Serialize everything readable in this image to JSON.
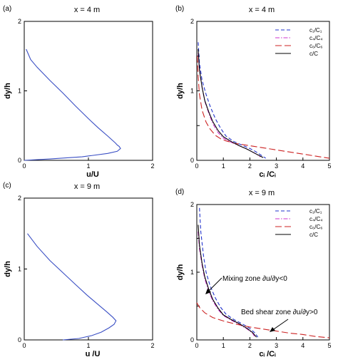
{
  "chart_data": [
    {
      "panel_label": "(a)",
      "title": "x = 4 m",
      "type": "line",
      "xlabel": "u/U",
      "ylabel": "dy/h",
      "xlim": [
        0,
        2
      ],
      "ylim": [
        0,
        2
      ],
      "xticks": [
        "0",
        "1",
        "2"
      ],
      "yticks": [
        "0",
        "1",
        "2"
      ],
      "series": [
        {
          "color": "#3a4fc4",
          "style": "solid",
          "x": [
            0,
            0.4,
            0.9,
            1.3,
            1.45,
            1.5,
            1.48,
            1.45,
            1.42,
            1.3,
            1.15,
            1.0,
            0.8,
            0.6,
            0.4,
            0.2,
            0.1,
            0.03
          ],
          "y": [
            0,
            0.02,
            0.05,
            0.1,
            0.13,
            0.17,
            0.2,
            0.22,
            0.25,
            0.35,
            0.47,
            0.6,
            0.78,
            0.97,
            1.15,
            1.34,
            1.45,
            1.6
          ]
        }
      ]
    },
    {
      "panel_label": "(b)",
      "title": "x = 4 m",
      "type": "line",
      "xlabel": "cᵢ /Cᵢ",
      "ylabel": "dy/h",
      "xlim": [
        0,
        5
      ],
      "ylim": [
        0,
        2
      ],
      "xticks": [
        "0",
        "1",
        "2",
        "3",
        "4",
        "5"
      ],
      "yticks": [
        "0",
        "0.5",
        "1",
        "1.5",
        "2"
      ],
      "legend": [
        "c₁/C₁",
        "c₄/C₄",
        "c₆/C₆",
        "c/C"
      ],
      "series": [
        {
          "color": "#2233cc",
          "style": "dashed",
          "x": [
            0.05,
            0.1,
            0.2,
            0.35,
            0.5,
            0.7,
            0.9,
            1.1,
            1.4,
            1.7,
            2.0,
            2.2,
            2.4,
            2.6
          ],
          "y": [
            1.7,
            1.4,
            1.15,
            0.95,
            0.78,
            0.6,
            0.46,
            0.35,
            0.27,
            0.22,
            0.17,
            0.13,
            0.08,
            0.03
          ]
        },
        {
          "color": "#cc33cc",
          "style": "dashdot",
          "x": [
            0.05,
            0.1,
            0.2,
            0.3,
            0.45,
            0.6,
            0.8,
            1.0,
            1.3,
            1.6,
            1.9,
            2.2,
            2.4
          ],
          "y": [
            1.55,
            1.3,
            1.05,
            0.85,
            0.68,
            0.53,
            0.4,
            0.32,
            0.26,
            0.21,
            0.16,
            0.1,
            0.05
          ]
        },
        {
          "color": "#cc2222",
          "style": "longdash",
          "x": [
            0.02,
            0.05,
            0.1,
            0.2,
            0.35,
            0.5,
            0.7,
            0.9,
            1.1,
            1.5,
            2.0,
            2.5,
            3.0,
            3.5,
            4.0,
            4.5,
            5.0
          ],
          "y": [
            1.5,
            1.2,
            0.95,
            0.72,
            0.55,
            0.45,
            0.36,
            0.31,
            0.28,
            0.24,
            0.21,
            0.18,
            0.15,
            0.12,
            0.09,
            0.06,
            0.03
          ]
        },
        {
          "color": "#000000",
          "style": "solid",
          "x": [
            0.05,
            0.1,
            0.2,
            0.3,
            0.45,
            0.6,
            0.8,
            1.0,
            1.3,
            1.6,
            1.9,
            2.2,
            2.5
          ],
          "y": [
            1.6,
            1.3,
            1.05,
            0.86,
            0.7,
            0.56,
            0.43,
            0.34,
            0.27,
            0.21,
            0.16,
            0.1,
            0.04
          ]
        }
      ]
    },
    {
      "panel_label": "(c)",
      "title": "x = 9 m",
      "type": "line",
      "xlabel": "u /U",
      "ylabel": "dy/h",
      "xlim": [
        0,
        2
      ],
      "ylim": [
        0,
        2
      ],
      "xticks": [
        "0",
        "1",
        "2"
      ],
      "yticks": [
        "0",
        "1",
        "2"
      ],
      "series": [
        {
          "color": "#3a4fc4",
          "style": "solid",
          "x": [
            0.6,
            0.85,
            1.05,
            1.2,
            1.32,
            1.4,
            1.43,
            1.38,
            1.28,
            1.15,
            0.98,
            0.8,
            0.6,
            0.4,
            0.2,
            0.05
          ],
          "y": [
            0,
            0.02,
            0.06,
            0.11,
            0.17,
            0.22,
            0.27,
            0.32,
            0.4,
            0.5,
            0.63,
            0.78,
            0.95,
            1.12,
            1.32,
            1.5
          ]
        }
      ]
    },
    {
      "panel_label": "(d)",
      "title": "x = 9 m",
      "type": "line",
      "xlabel": "cᵢ /Cᵢ",
      "ylabel": "dy/h",
      "xlim": [
        0,
        5
      ],
      "ylim": [
        0,
        2
      ],
      "xticks": [
        "0",
        "1",
        "2",
        "3",
        "4",
        "5"
      ],
      "yticks": [
        "0",
        "0.5",
        "1",
        "1.5",
        "2"
      ],
      "legend": [
        "c₁/C₁",
        "c₄/C₄",
        "c₆/C₆",
        "c/C"
      ],
      "annotations": [
        "Mixing zone ∂u/∂y<0",
        "Bed shear zone ∂u/∂y>0"
      ],
      "series": [
        {
          "color": "#2233cc",
          "style": "dashed",
          "x": [
            0.1,
            0.15,
            0.25,
            0.35,
            0.5,
            0.7,
            0.9,
            1.1,
            1.4,
            1.7,
            2.0,
            2.2,
            2.3
          ],
          "y": [
            1.95,
            1.6,
            1.25,
            1.0,
            0.8,
            0.62,
            0.48,
            0.38,
            0.3,
            0.24,
            0.17,
            0.1,
            0.04
          ]
        },
        {
          "color": "#cc33cc",
          "style": "dashdot",
          "x": [
            0.05,
            0.1,
            0.2,
            0.3,
            0.45,
            0.6,
            0.8,
            1.0,
            1.3,
            1.6,
            1.9,
            2.1,
            2.2
          ],
          "y": [
            1.6,
            1.35,
            1.1,
            0.9,
            0.72,
            0.58,
            0.45,
            0.36,
            0.29,
            0.23,
            0.16,
            0.1,
            0.04
          ]
        },
        {
          "color": "#cc2222",
          "style": "longdash",
          "x": [
            0.0,
            0.1,
            0.3,
            0.6,
            1.0,
            1.5,
            2.0,
            2.5,
            3.0,
            3.5,
            4.0,
            4.5,
            5.0
          ],
          "y": [
            0.55,
            0.48,
            0.4,
            0.33,
            0.28,
            0.23,
            0.19,
            0.16,
            0.13,
            0.1,
            0.08,
            0.05,
            0.03
          ]
        },
        {
          "color": "#000000",
          "style": "solid",
          "x": [
            0.05,
            0.1,
            0.2,
            0.3,
            0.45,
            0.6,
            0.8,
            1.0,
            1.3,
            1.6,
            1.9,
            2.1,
            2.25
          ],
          "y": [
            1.7,
            1.4,
            1.13,
            0.93,
            0.75,
            0.6,
            0.47,
            0.37,
            0.3,
            0.24,
            0.17,
            0.11,
            0.04
          ]
        }
      ]
    }
  ]
}
